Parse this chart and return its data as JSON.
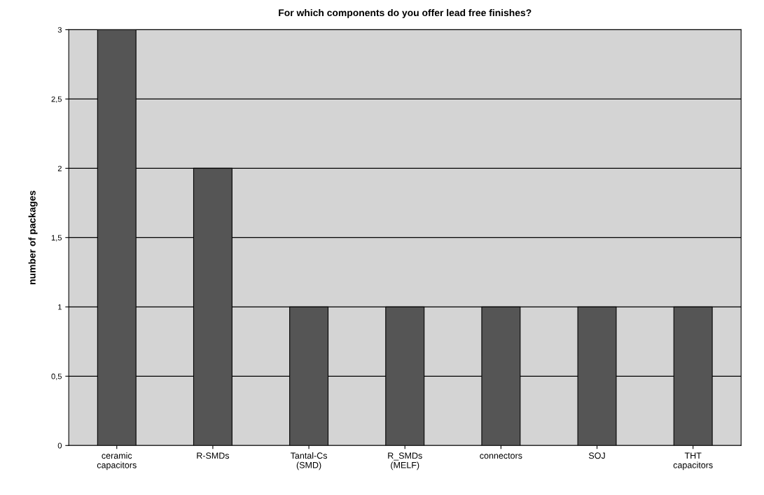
{
  "chart_data": {
    "type": "bar",
    "title": "For which components do you offer lead free finishes?",
    "ylabel": "number of packages",
    "categories": [
      "ceramic\ncapacitors",
      "R-SMDs",
      "Tantal-Cs\n(SMD)",
      "R_SMDs\n(MELF)",
      "connectors",
      "SOJ",
      "THT\ncapacitors"
    ],
    "values": [
      3,
      2,
      1,
      1,
      1,
      1,
      1
    ],
    "color": "#555555",
    "ylim": [
      0,
      3
    ],
    "yticks": [
      0,
      {
        "value": 0.5,
        "label": "0,5"
      },
      1,
      {
        "value": 1.5,
        "label": "1,5"
      },
      2,
      {
        "value": 2.5,
        "label": "2,5"
      },
      3
    ],
    "grid": "y"
  }
}
